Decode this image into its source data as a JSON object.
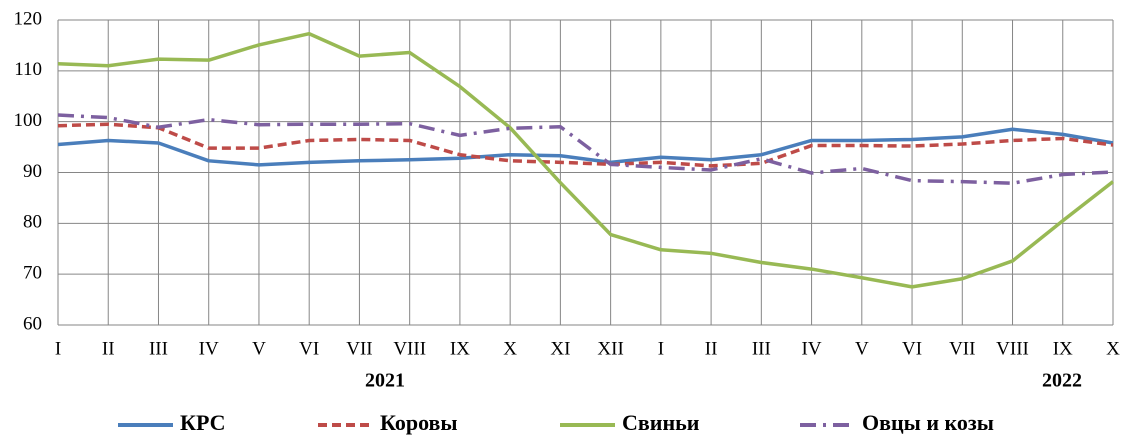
{
  "chart_data": {
    "type": "line",
    "categories": [
      "I",
      "II",
      "III",
      "IV",
      "V",
      "VI",
      "VII",
      "VIII",
      "IX",
      "X",
      "XI",
      "XII",
      "I",
      "II",
      "III",
      "IV",
      "V",
      "VI",
      "VII",
      "VIII",
      "IX",
      "X"
    ],
    "year_labels": [
      "2021",
      "2022"
    ],
    "ylim": [
      60,
      120
    ],
    "yticks": [
      60,
      70,
      80,
      90,
      100,
      110,
      120
    ],
    "grid": true,
    "legend": "bottom",
    "series": [
      {
        "name": "КРС",
        "color": "#4a7ebb",
        "style": "solid",
        "values": [
          95.5,
          96.3,
          95.8,
          92.3,
          91.5,
          92.0,
          92.3,
          92.5,
          92.8,
          93.5,
          93.3,
          92.0,
          93.0,
          92.5,
          93.5,
          96.3,
          96.3,
          96.5,
          97.0,
          98.5,
          97.5,
          95.8
        ]
      },
      {
        "name": "Коровы",
        "color": "#be4b48",
        "style": "dashed",
        "values": [
          99.2,
          99.5,
          98.8,
          94.8,
          94.8,
          96.3,
          96.5,
          96.3,
          93.5,
          92.3,
          92.0,
          91.6,
          92.0,
          91.3,
          91.8,
          95.3,
          95.3,
          95.2,
          95.6,
          96.3,
          96.7,
          95.4
        ]
      },
      {
        "name": "Свиньи",
        "color": "#98b954",
        "style": "solid",
        "values": [
          111.4,
          111.0,
          112.3,
          112.1,
          115.1,
          117.3,
          112.9,
          113.6,
          106.9,
          98.8,
          88.0,
          77.8,
          74.8,
          74.1,
          72.3,
          71.0,
          69.3,
          67.5,
          69.1,
          72.6,
          80.5,
          88.2
        ]
      },
      {
        "name": "Овцы и козы",
        "color": "#7d60a0",
        "style": "dashdot",
        "values": [
          101.3,
          100.8,
          98.9,
          100.4,
          99.4,
          99.5,
          99.5,
          99.6,
          97.3,
          98.7,
          99.0,
          91.6,
          91.0,
          90.5,
          92.7,
          89.9,
          90.8,
          88.4,
          88.2,
          87.9,
          89.6,
          90.1
        ]
      }
    ]
  }
}
